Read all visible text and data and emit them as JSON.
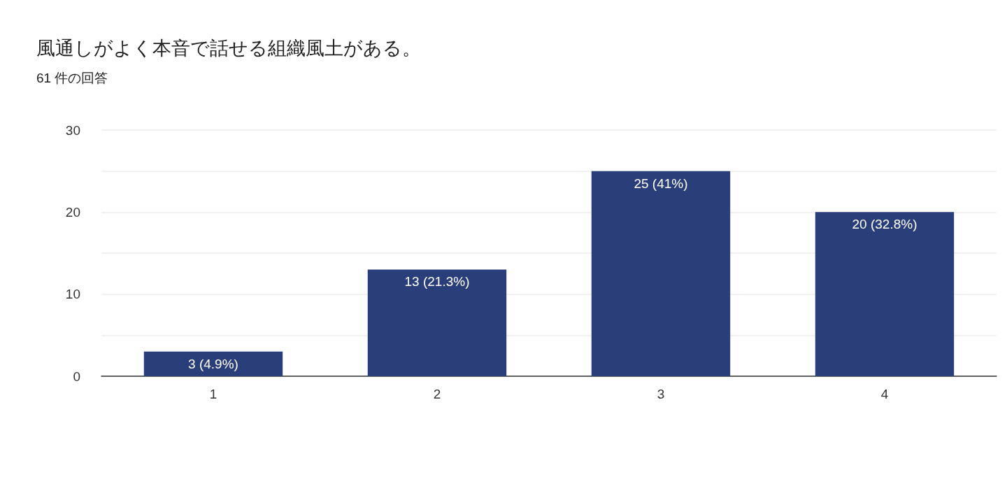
{
  "chart_data": {
    "type": "bar",
    "title": "風通しがよく本音で話せる組織風土がある。",
    "subtitle": "61 件の回答",
    "categories": [
      "1",
      "2",
      "3",
      "4"
    ],
    "values": [
      3,
      13,
      25,
      20
    ],
    "value_labels": [
      "3 (4.9%)",
      "13 (21.3%)",
      "25 (41%)",
      "20 (32.8%)"
    ],
    "color": "#2a3f7a",
    "ylim": [
      0,
      30
    ],
    "yticks": [
      0,
      {
        "value": 5,
        "label": null
      },
      10,
      {
        "value": 15,
        "label": null
      },
      20,
      {
        "value": 25,
        "label": null
      },
      30
    ],
    "grid": "y"
  }
}
